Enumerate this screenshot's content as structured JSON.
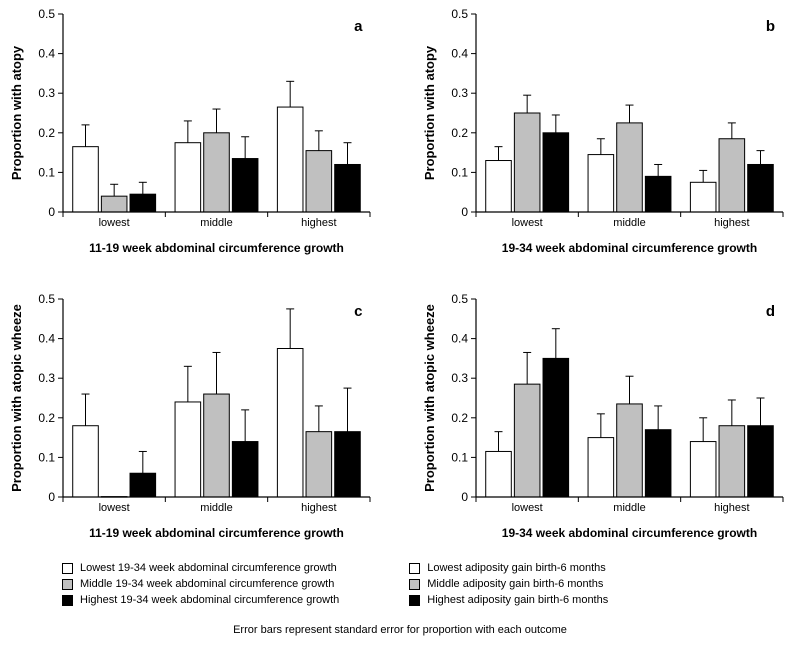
{
  "footnote": "Error bars represent standard error for proportion with each outcome",
  "legendLeft": {
    "items": [
      {
        "label": "Lowest 19-34 week abdominal circumference growth",
        "fill": "#ffffff"
      },
      {
        "label": "Middle 19-34 week abdominal circumference growth",
        "fill": "#c0c0c0"
      },
      {
        "label": "Highest 19-34 week abdominal circumference growth",
        "fill": "#000000"
      }
    ]
  },
  "legendRight": {
    "items": [
      {
        "label": "Lowest adiposity gain birth-6 months",
        "fill": "#ffffff"
      },
      {
        "label": "Middle adiposity gain birth-6 months",
        "fill": "#c0c0c0"
      },
      {
        "label": "Highest adiposity gain birth-6 months",
        "fill": "#000000"
      }
    ]
  },
  "common": {
    "ylim": [
      0,
      0.5
    ],
    "yticks": [
      0,
      0.1,
      0.2,
      0.3,
      0.4,
      0.5
    ],
    "bar_colors": [
      "#ffffff",
      "#c0c0c0",
      "#000000"
    ],
    "bar_stroke": "#000000",
    "bar_width": 0.25,
    "axis_color": "#000000",
    "error_cap_width": 8,
    "tick_len": 5,
    "categories": [
      "lowest",
      "middle",
      "highest"
    ]
  },
  "panels": {
    "a": {
      "panel_label": "a",
      "y_title": "Proportion with atopy",
      "x_title": "11-19 week abdominal circumference growth",
      "groups": [
        {
          "cat": "lowest",
          "vals": [
            0.165,
            0.04,
            0.045
          ],
          "errs": [
            0.055,
            0.03,
            0.03
          ]
        },
        {
          "cat": "middle",
          "vals": [
            0.175,
            0.2,
            0.135
          ],
          "errs": [
            0.055,
            0.06,
            0.055
          ]
        },
        {
          "cat": "highest",
          "vals": [
            0.265,
            0.155,
            0.12
          ],
          "errs": [
            0.065,
            0.05,
            0.055
          ]
        }
      ]
    },
    "b": {
      "panel_label": "b",
      "y_title": "Proportion with atopy",
      "x_title": "19-34 week abdominal circumference growth",
      "groups": [
        {
          "cat": "lowest",
          "vals": [
            0.13,
            0.25,
            0.2
          ],
          "errs": [
            0.035,
            0.045,
            0.045
          ]
        },
        {
          "cat": "middle",
          "vals": [
            0.145,
            0.225,
            0.09
          ],
          "errs": [
            0.04,
            0.045,
            0.03
          ]
        },
        {
          "cat": "highest",
          "vals": [
            0.075,
            0.185,
            0.12
          ],
          "errs": [
            0.03,
            0.04,
            0.035
          ]
        }
      ]
    },
    "c": {
      "panel_label": "c",
      "y_title": "Proportion with atopic wheeze",
      "x_title": "11-19 week abdominal circumference growth",
      "groups": [
        {
          "cat": "lowest",
          "vals": [
            0.18,
            0.001,
            0.06
          ],
          "errs": [
            0.08,
            0,
            0.055
          ]
        },
        {
          "cat": "middle",
          "vals": [
            0.24,
            0.26,
            0.14
          ],
          "errs": [
            0.09,
            0.105,
            0.08
          ]
        },
        {
          "cat": "highest",
          "vals": [
            0.375,
            0.165,
            0.165
          ],
          "errs": [
            0.1,
            0.065,
            0.11
          ]
        }
      ]
    },
    "d": {
      "panel_label": "d",
      "y_title": "Proportion with atopic wheeze",
      "x_title": "19-34 week abdominal circumference growth",
      "groups": [
        {
          "cat": "lowest",
          "vals": [
            0.115,
            0.285,
            0.35
          ],
          "errs": [
            0.05,
            0.08,
            0.075
          ]
        },
        {
          "cat": "middle",
          "vals": [
            0.15,
            0.235,
            0.17
          ],
          "errs": [
            0.06,
            0.07,
            0.06
          ]
        },
        {
          "cat": "highest",
          "vals": [
            0.14,
            0.18,
            0.18
          ],
          "errs": [
            0.06,
            0.065,
            0.07
          ]
        }
      ]
    }
  }
}
